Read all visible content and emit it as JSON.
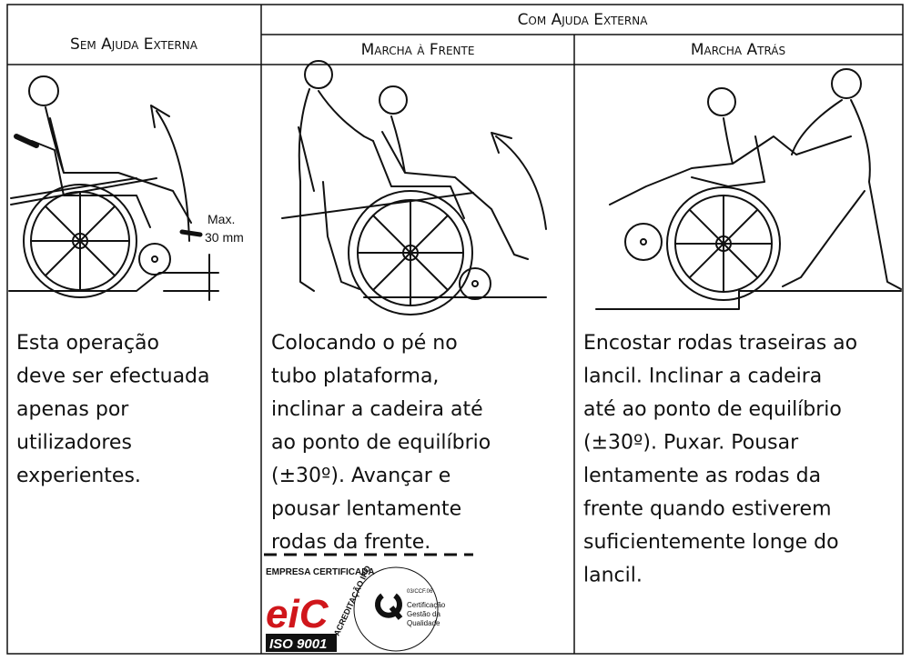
{
  "header": {
    "without_help": "Sem Ajuda Externa",
    "with_help": "Com Ajuda Externa",
    "forward": "Marcha à Frente",
    "backward": "Marcha Atrás"
  },
  "illustration": {
    "max_label": "Max.",
    "max_value": "30 mm"
  },
  "instructions": [
    {
      "lines": [
        "Esta operação",
        "deve ser efectuada",
        "apenas por",
        "utilizadores",
        "experientes."
      ]
    },
    {
      "lines": [
        "Colocando o pé no",
        "tubo plataforma,",
        "inclinar a cadeira até",
        "ao ponto de equilíbrio",
        "(±30º). Avançar e",
        "pousar lentamente",
        "rodas da frente."
      ]
    },
    {
      "lines": [
        "Encostar rodas traseiras ao",
        "lancil. Inclinar a cadeira",
        "até ao ponto de equilíbrio",
        "(±30º). Puxar. Pousar",
        "lentamente as rodas da",
        "frente quando estiverem",
        "suficientemente longe do",
        "lancil."
      ]
    }
  ],
  "logo": {
    "company": "EMPRESA CERTIFICADA",
    "brand": "eiC",
    "standard": "ISO 9001",
    "accreditation": "ACREDITAÇÃO IPO",
    "code": "03/CCF.06",
    "certification": [
      "Certificação",
      "Gestão da",
      "Qualidade"
    ]
  }
}
